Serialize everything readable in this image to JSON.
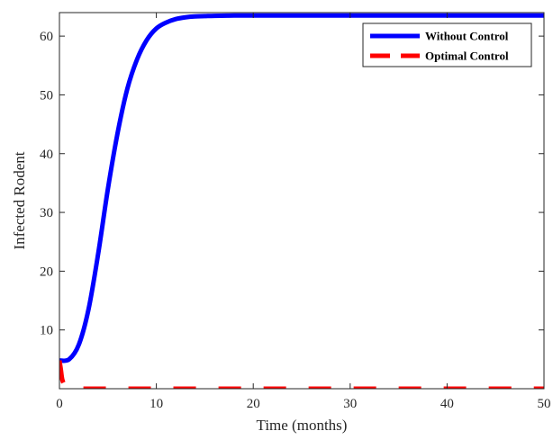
{
  "chart_data": {
    "type": "line",
    "title": "",
    "xlabel": "Time (months)",
    "ylabel": "Infected Rodent",
    "xlim": [
      0,
      50
    ],
    "ylim": [
      0,
      64
    ],
    "xticks": [
      0,
      10,
      20,
      30,
      40,
      50
    ],
    "yticks": [
      10,
      20,
      30,
      40,
      50,
      60
    ],
    "grid": false,
    "legend_position": "top-right",
    "series": [
      {
        "name": "Without Control",
        "color": "#0000ff",
        "style": "solid",
        "x": [
          0,
          1,
          2,
          3,
          4,
          5,
          6,
          7,
          8,
          9,
          10,
          11,
          12,
          13,
          14,
          15,
          16,
          18,
          20,
          25,
          30,
          35,
          40,
          45,
          50
        ],
        "y": [
          4.8,
          5.0,
          7.5,
          13.5,
          23.0,
          34.0,
          43.5,
          51.0,
          56.0,
          59.3,
          61.3,
          62.3,
          62.9,
          63.2,
          63.35,
          63.4,
          63.45,
          63.5,
          63.5,
          63.5,
          63.5,
          63.5,
          63.5,
          63.5,
          63.5
        ]
      },
      {
        "name": "Optimal Control",
        "color": "#ff0000",
        "style": "dashed",
        "x": [
          0,
          0.15,
          0.3,
          0.6,
          1.0,
          1.5,
          2.0,
          3.0,
          5.0,
          10,
          20,
          30,
          40,
          50
        ],
        "y": [
          4.8,
          3.2,
          1.5,
          0.5,
          0.15,
          0.05,
          0.02,
          0,
          0,
          0,
          0,
          0,
          0,
          0
        ]
      }
    ]
  }
}
